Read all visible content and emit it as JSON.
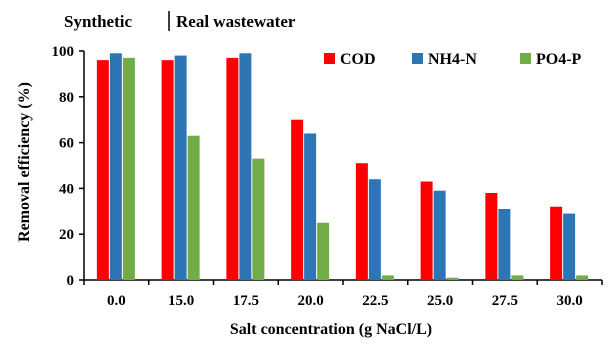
{
  "header": {
    "left_label": "Synthetic",
    "right_label": "Real wastewater"
  },
  "chart_data": {
    "type": "bar",
    "categories": [
      "0.0",
      "15.0",
      "17.5",
      "20.0",
      "22.5",
      "25.0",
      "27.5",
      "30.0"
    ],
    "series": [
      {
        "name": "COD",
        "color": "#ff0000",
        "values": [
          96,
          96,
          97,
          70,
          51,
          43,
          38,
          32
        ]
      },
      {
        "name": "NH4-N",
        "color": "#2e75b6",
        "values": [
          99,
          98,
          99,
          64,
          44,
          39,
          31,
          29
        ]
      },
      {
        "name": "PO4-P",
        "color": "#70ad47",
        "values": [
          97,
          63,
          53,
          25,
          2,
          1,
          2,
          2
        ]
      }
    ],
    "xlabel": "Salt concentration (g NaCl/L)",
    "ylabel": "Removal efficiency (%)",
    "ylim": [
      0,
      100
    ],
    "yticks": [
      0,
      20,
      40,
      60,
      80,
      100
    ],
    "grid": false,
    "legend_position": "top-right"
  }
}
